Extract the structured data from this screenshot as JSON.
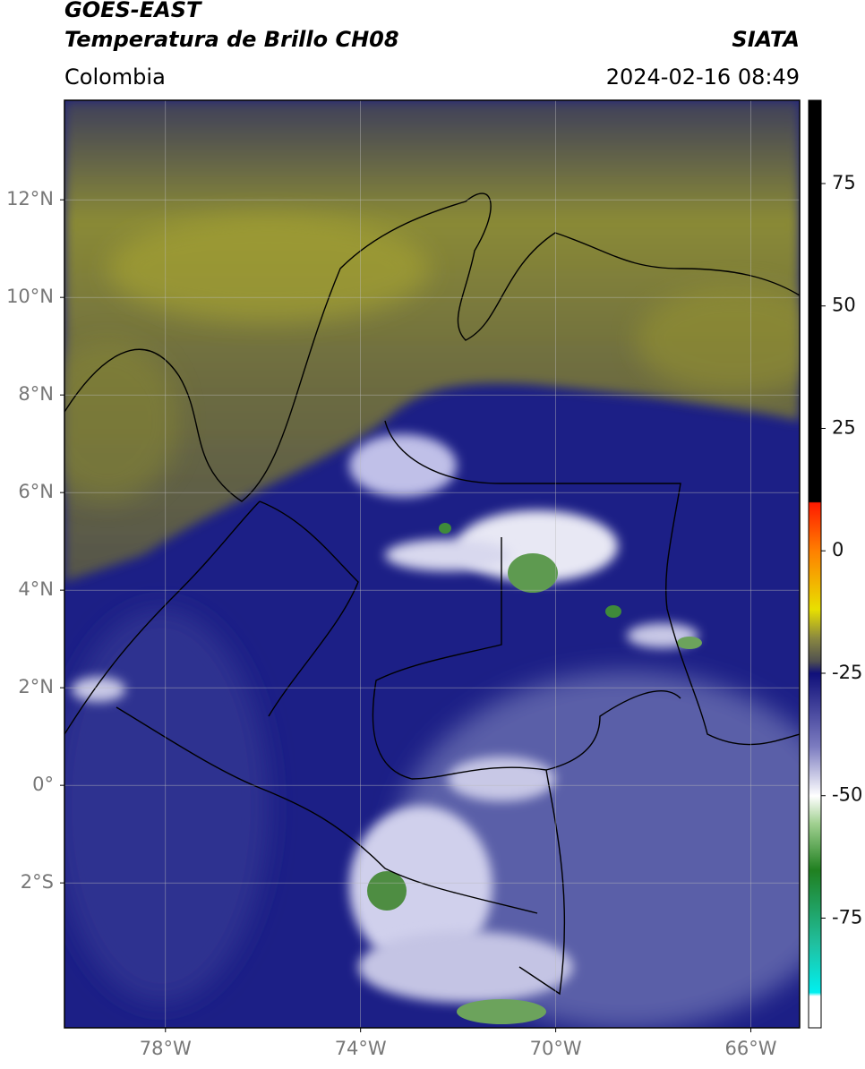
{
  "header": {
    "title_line1": "GOES-EAST",
    "title_line2": "Temperatura de Brillo CH08",
    "source": "SIATA",
    "region": "Colombia",
    "datetime": "2024-02-16 08:49"
  },
  "map": {
    "xlim": [
      -80.07,
      -65.0
    ],
    "ylim": [
      -4.97,
      14.04
    ],
    "xticks": [
      {
        "value": -78,
        "label": "78°W"
      },
      {
        "value": -74,
        "label": "74°W"
      },
      {
        "value": -70,
        "label": "70°W"
      },
      {
        "value": -66,
        "label": "66°W"
      }
    ],
    "yticks": [
      {
        "value": 12,
        "label": "12°N"
      },
      {
        "value": 10,
        "label": "10°N"
      },
      {
        "value": 8,
        "label": "8°N"
      },
      {
        "value": 6,
        "label": "6°N"
      },
      {
        "value": 4,
        "label": "4°N"
      },
      {
        "value": 2,
        "label": "2°N"
      },
      {
        "value": 0,
        "label": "0°"
      },
      {
        "value": -2,
        "label": "2°S"
      }
    ],
    "grid": true
  },
  "colorbar": {
    "lim": [
      -97.4,
      92
    ],
    "ticks": [
      75,
      50,
      25,
      0,
      -25,
      -50,
      -75
    ]
  }
}
